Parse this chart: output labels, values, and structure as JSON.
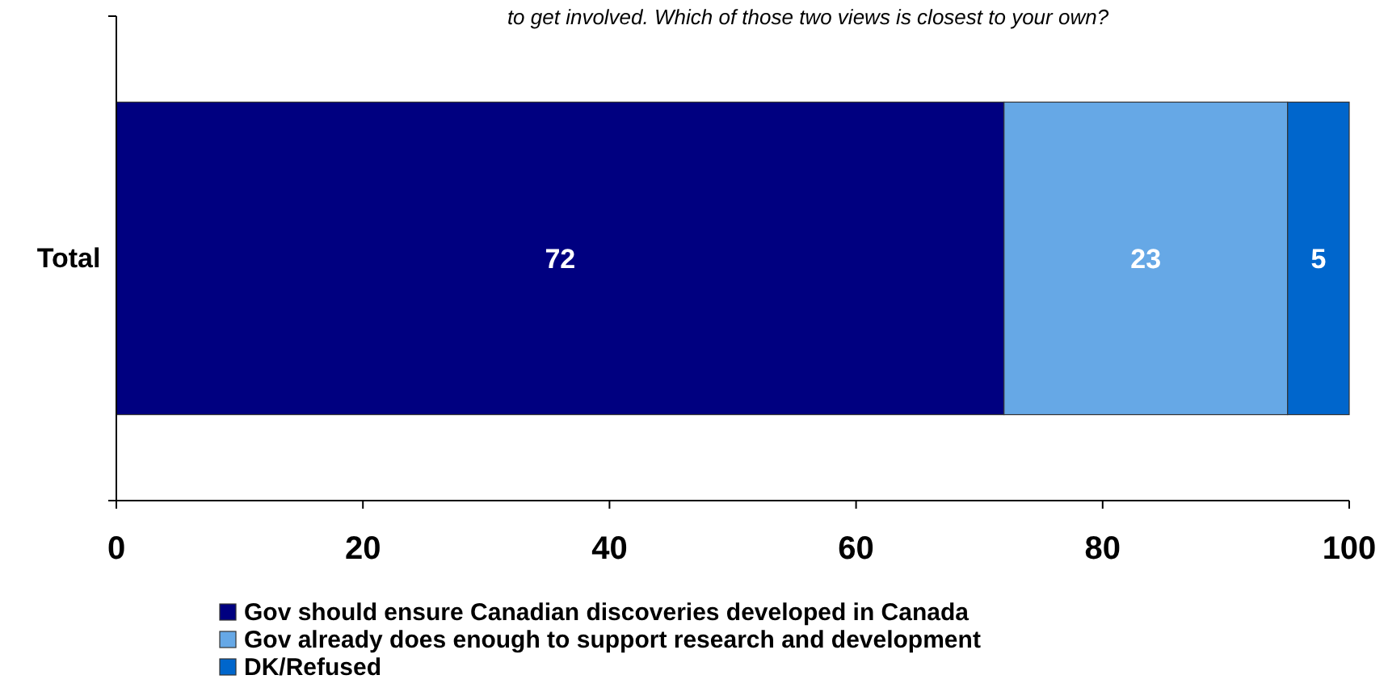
{
  "chart_data": {
    "type": "bar",
    "orientation": "horizontal",
    "stacked": true,
    "title": "to get involved. Which of those two views is closest to your own?",
    "categories": [
      "Total"
    ],
    "series": [
      {
        "name": "Gov should ensure Canadian discoveries developed in Canada",
        "color": "#000080",
        "values": [
          72
        ]
      },
      {
        "name": "Gov already does enough to support research and development",
        "color": "#66a8e6",
        "values": [
          23
        ]
      },
      {
        "name": "DK/Refused",
        "color": "#0066cc",
        "values": [
          5
        ]
      }
    ],
    "xlim": [
      0,
      100
    ],
    "xticks": [
      0,
      20,
      40,
      60,
      80,
      100
    ],
    "data_labels": true,
    "legend": "bottom",
    "grid": false
  }
}
